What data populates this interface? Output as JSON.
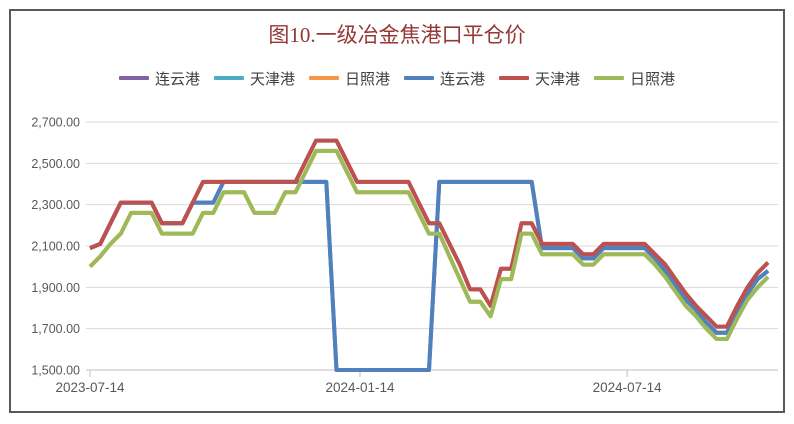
{
  "title": {
    "text": "图10.一级冶金焦港口平仓价",
    "color": "#953735"
  },
  "legend": [
    {
      "label": "连云港",
      "color": "#8064A2"
    },
    {
      "label": "天津港",
      "color": "#4BACC6"
    },
    {
      "label": "日照港",
      "color": "#F79646"
    },
    {
      "label": "连云港",
      "color": "#4F81BD"
    },
    {
      "label": "天津港",
      "color": "#C0504D"
    },
    {
      "label": "日照港",
      "color": "#9BBB59"
    }
  ],
  "y_axis": {
    "labels": [
      "2,700.00",
      "2,500.00",
      "2,300.00",
      "2,100.00",
      "1,900.00",
      "1,700.00",
      "1,500.00"
    ],
    "values": [
      2700,
      2500,
      2300,
      2100,
      1900,
      1700,
      1500
    ],
    "color": "#595959"
  },
  "x_axis": {
    "labels": [
      "2023-07-14",
      "2024-01-14",
      "2024-07-14"
    ],
    "tick_dates": [
      "2023-07-14",
      "2024-01-14",
      "2024-07-14"
    ],
    "color": "#595959"
  },
  "colors": {
    "gridline": "#D9D9D9",
    "axis_line": "#BFBFBF",
    "frame_border": "#595959"
  },
  "chart_data": {
    "type": "line",
    "title": "图10.一级冶金焦港口平仓价",
    "ylim": [
      1500,
      2700
    ],
    "ytick_step": 200,
    "grid": true,
    "legend_position": "top",
    "x_start_date": "2023-07-14",
    "x_interval": "weekly",
    "rendering_note": "zero values of 连云港(blue) are clipped at the y-axis minimum, drawing vertical drops to the axis; the first three legend series are completely hidden behind the last three identical series",
    "x": [
      "2023-07-14",
      "2023-07-21",
      "2023-07-28",
      "2023-08-04",
      "2023-08-11",
      "2023-08-18",
      "2023-08-25",
      "2023-09-01",
      "2023-09-08",
      "2023-09-15",
      "2023-09-22",
      "2023-09-29",
      "2023-10-06",
      "2023-10-13",
      "2023-10-20",
      "2023-10-27",
      "2023-11-03",
      "2023-11-10",
      "2023-11-17",
      "2023-11-24",
      "2023-12-01",
      "2023-12-08",
      "2023-12-15",
      "2023-12-22",
      "2023-12-29",
      "2024-01-05",
      "2024-01-12",
      "2024-01-19",
      "2024-01-26",
      "2024-02-02",
      "2024-02-09",
      "2024-02-16",
      "2024-02-23",
      "2024-03-01",
      "2024-03-08",
      "2024-03-15",
      "2024-03-22",
      "2024-03-29",
      "2024-04-05",
      "2024-04-12",
      "2024-04-19",
      "2024-04-26",
      "2024-05-03",
      "2024-05-10",
      "2024-05-17",
      "2024-05-24",
      "2024-05-31",
      "2024-06-07",
      "2024-06-14",
      "2024-06-21",
      "2024-06-28",
      "2024-07-05",
      "2024-07-12",
      "2024-07-19",
      "2024-07-26",
      "2024-08-02",
      "2024-08-09",
      "2024-08-16",
      "2024-08-23",
      "2024-08-30",
      "2024-09-06",
      "2024-09-13",
      "2024-09-20",
      "2024-09-27",
      "2024-10-04",
      "2024-10-11",
      "2024-10-18"
    ],
    "series": [
      {
        "name": "连云港",
        "color": "#8064A2",
        "hidden_behind_later_series": true,
        "values": [
          2090,
          2110,
          2210,
          2310,
          2310,
          2310,
          2310,
          2210,
          2210,
          2210,
          2310,
          2310,
          2310,
          2410,
          2410,
          2410,
          2410,
          2410,
          2410,
          2410,
          2410,
          2410,
          2410,
          2410,
          0,
          0,
          0,
          0,
          0,
          0,
          0,
          0,
          0,
          0,
          2410,
          2410,
          2410,
          2410,
          2410,
          2410,
          2410,
          2410,
          2410,
          2410,
          2090,
          2090,
          2090,
          2090,
          2040,
          2040,
          2090,
          2090,
          2090,
          2090,
          2090,
          2040,
          1980,
          1910,
          1840,
          1790,
          1730,
          1680,
          1680,
          1780,
          1870,
          1940,
          1980
        ]
      },
      {
        "name": "天津港",
        "color": "#4BACC6",
        "hidden_behind_later_series": true,
        "values": [
          2090,
          2110,
          2210,
          2310,
          2310,
          2310,
          2310,
          2210,
          2210,
          2210,
          2310,
          2410,
          2410,
          2410,
          2410,
          2410,
          2410,
          2410,
          2410,
          2410,
          2410,
          2510,
          2610,
          2610,
          2610,
          2510,
          2410,
          2410,
          2410,
          2410,
          2410,
          2410,
          2310,
          2210,
          2210,
          2110,
          2010,
          1890,
          1890,
          1810,
          1990,
          1990,
          2210,
          2210,
          2110,
          2110,
          2110,
          2110,
          2060,
          2060,
          2110,
          2110,
          2110,
          2110,
          2110,
          2060,
          2010,
          1940,
          1870,
          1810,
          1760,
          1710,
          1710,
          1810,
          1900,
          1970,
          2020
        ]
      },
      {
        "name": "日照港",
        "color": "#F79646",
        "hidden_behind_later_series": true,
        "values": [
          2000,
          2050,
          2110,
          2160,
          2260,
          2260,
          2260,
          2160,
          2160,
          2160,
          2160,
          2260,
          2260,
          2360,
          2360,
          2360,
          2260,
          2260,
          2260,
          2360,
          2360,
          2460,
          2560,
          2560,
          2560,
          2460,
          2360,
          2360,
          2360,
          2360,
          2360,
          2360,
          2260,
          2160,
          2160,
          2050,
          1940,
          1830,
          1830,
          1760,
          1940,
          1940,
          2160,
          2160,
          2060,
          2060,
          2060,
          2060,
          2010,
          2010,
          2060,
          2060,
          2060,
          2060,
          2060,
          2010,
          1950,
          1880,
          1810,
          1760,
          1700,
          1650,
          1650,
          1750,
          1840,
          1900,
          1950
        ]
      },
      {
        "name": "连云港",
        "color": "#4F81BD",
        "hidden_behind_later_series": false,
        "values": [
          2090,
          2110,
          2210,
          2310,
          2310,
          2310,
          2310,
          2210,
          2210,
          2210,
          2310,
          2310,
          2310,
          2410,
          2410,
          2410,
          2410,
          2410,
          2410,
          2410,
          2410,
          2410,
          2410,
          2410,
          0,
          0,
          0,
          0,
          0,
          0,
          0,
          0,
          0,
          0,
          2410,
          2410,
          2410,
          2410,
          2410,
          2410,
          2410,
          2410,
          2410,
          2410,
          2090,
          2090,
          2090,
          2090,
          2040,
          2040,
          2090,
          2090,
          2090,
          2090,
          2090,
          2040,
          1980,
          1910,
          1840,
          1790,
          1730,
          1680,
          1680,
          1780,
          1870,
          1940,
          1980
        ]
      },
      {
        "name": "天津港",
        "color": "#C0504D",
        "hidden_behind_later_series": false,
        "values": [
          2090,
          2110,
          2210,
          2310,
          2310,
          2310,
          2310,
          2210,
          2210,
          2210,
          2310,
          2410,
          2410,
          2410,
          2410,
          2410,
          2410,
          2410,
          2410,
          2410,
          2410,
          2510,
          2610,
          2610,
          2610,
          2510,
          2410,
          2410,
          2410,
          2410,
          2410,
          2410,
          2310,
          2210,
          2210,
          2110,
          2010,
          1890,
          1890,
          1810,
          1990,
          1990,
          2210,
          2210,
          2110,
          2110,
          2110,
          2110,
          2060,
          2060,
          2110,
          2110,
          2110,
          2110,
          2110,
          2060,
          2010,
          1940,
          1870,
          1810,
          1760,
          1710,
          1710,
          1810,
          1900,
          1970,
          2020
        ]
      },
      {
        "name": "日照港",
        "color": "#9BBB59",
        "hidden_behind_later_series": false,
        "values": [
          2000,
          2050,
          2110,
          2160,
          2260,
          2260,
          2260,
          2160,
          2160,
          2160,
          2160,
          2260,
          2260,
          2360,
          2360,
          2360,
          2260,
          2260,
          2260,
          2360,
          2360,
          2460,
          2560,
          2560,
          2560,
          2460,
          2360,
          2360,
          2360,
          2360,
          2360,
          2360,
          2260,
          2160,
          2160,
          2050,
          1940,
          1830,
          1830,
          1760,
          1940,
          1940,
          2160,
          2160,
          2060,
          2060,
          2060,
          2060,
          2010,
          2010,
          2060,
          2060,
          2060,
          2060,
          2060,
          2010,
          1950,
          1880,
          1810,
          1760,
          1700,
          1650,
          1650,
          1750,
          1840,
          1900,
          1950
        ]
      }
    ]
  }
}
